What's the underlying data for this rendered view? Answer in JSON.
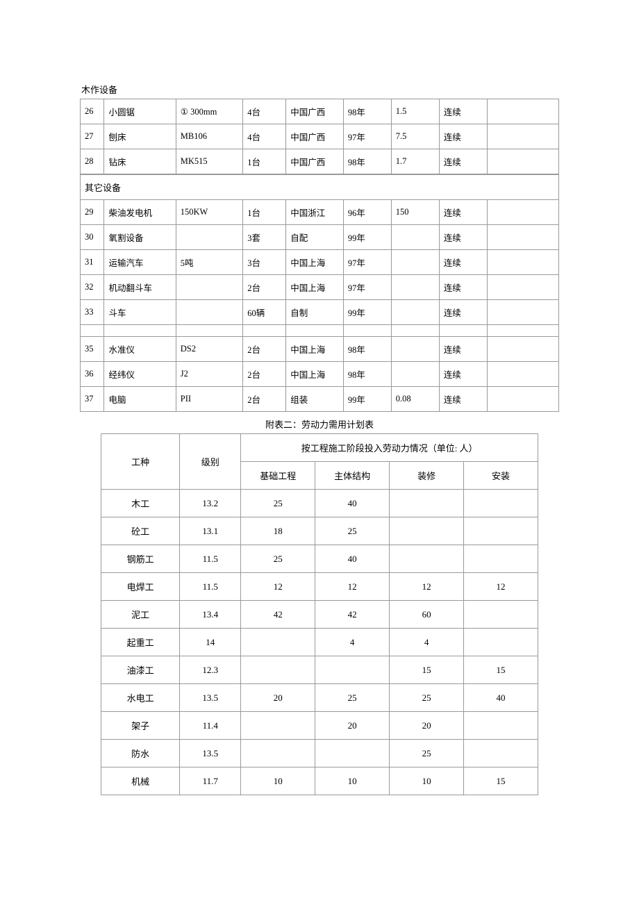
{
  "equipment_table": {
    "sections": [
      {
        "title": "木作设备",
        "rows": [
          {
            "no": "26",
            "name": "小圆锯",
            "model": "①  300mm",
            "qty": "4台",
            "origin": "中国广西",
            "year": "98年",
            "power": "1.5",
            "mode": "连续",
            "note": ""
          },
          {
            "no": "27",
            "name": "刨床",
            "model": "MB106",
            "qty": "4台",
            "origin": "中国广西",
            "year": "97年",
            "power": "7.5",
            "mode": "连续",
            "note": ""
          },
          {
            "no": "28",
            "name": "钻床",
            "model": "MK515",
            "qty": "1台",
            "origin": "中国广西",
            "year": "98年",
            "power": "1.7",
            "mode": "连续",
            "note": ""
          }
        ]
      },
      {
        "title": "其它设备",
        "rows": [
          {
            "no": "29",
            "name": "柴油发电机",
            "model": "150KW",
            "qty": "1台",
            "origin": "中国浙江",
            "year": "96年",
            "power": "150",
            "mode": "连续",
            "note": ""
          },
          {
            "no": "30",
            "name": "氧割设备",
            "model": "",
            "qty": "3套",
            "origin": "自配",
            "year": "99年",
            "power": "",
            "mode": "连续",
            "note": ""
          },
          {
            "no": "31",
            "name": "运输汽车",
            "model": "5吨",
            "qty": "3台",
            "origin": "中国上海",
            "year": "97年",
            "power": "",
            "mode": "连续",
            "note": ""
          },
          {
            "no": "32",
            "name": "机动翻斗车",
            "model": "",
            "qty": "2台",
            "origin": "中国上海",
            "year": "97年",
            "power": "",
            "mode": "连续",
            "note": ""
          },
          {
            "no": "33",
            "name": "斗车",
            "model": "",
            "qty": "60辆",
            "origin": "自制",
            "year": "99年",
            "power": "",
            "mode": "连续",
            "note": ""
          },
          {
            "no": "",
            "name": "",
            "model": "",
            "qty": "",
            "origin": "",
            "year": "",
            "power": "",
            "mode": "",
            "note": ""
          },
          {
            "no": "35",
            "name": "水准仪",
            "model": "DS2",
            "qty": "2台",
            "origin": "中国上海",
            "year": "98年",
            "power": "",
            "mode": "连续",
            "note": ""
          },
          {
            "no": "36",
            "name": "经纬仪",
            "model": "J2",
            "qty": "2台",
            "origin": "中国上海",
            "year": "98年",
            "power": "",
            "mode": "连续",
            "note": ""
          },
          {
            "no": "37",
            "name": "电脑",
            "model": "PII",
            "qty": "2台",
            "origin": "组装",
            "year": "99年",
            "power": "0.08",
            "mode": "连续",
            "note": ""
          }
        ]
      }
    ]
  },
  "labor_table": {
    "caption": "附表二：劳动力需用计划表",
    "headers": {
      "trade": "工种",
      "level": "级别",
      "phase_group": "按工程施工阶段投入劳动力情况（单位:  人）",
      "phase1": "基础工程",
      "phase2": "主体结构",
      "phase3": "装修",
      "phase4": "安装"
    },
    "rows": [
      {
        "trade": "木工",
        "level": "13.2",
        "p1": "25",
        "p2": "40",
        "p3": "",
        "p4": ""
      },
      {
        "trade": "砼工",
        "level": "13.1",
        "p1": "18",
        "p2": "25",
        "p3": "",
        "p4": ""
      },
      {
        "trade": "钢筋工",
        "level": "11.5",
        "p1": "25",
        "p2": "40",
        "p3": "",
        "p4": ""
      },
      {
        "trade": "电焊工",
        "level": "11.5",
        "p1": "12",
        "p2": "12",
        "p3": "12",
        "p4": "12"
      },
      {
        "trade": "泥工",
        "level": "13.4",
        "p1": "42",
        "p2": "42",
        "p3": "60",
        "p4": ""
      },
      {
        "trade": "起重工",
        "level": "14",
        "p1": "",
        "p2": "4",
        "p3": "4",
        "p4": ""
      },
      {
        "trade": "油漆工",
        "level": "12.3",
        "p1": "",
        "p2": "",
        "p3": "15",
        "p4": "15"
      },
      {
        "trade": "水电工",
        "level": "13.5",
        "p1": "20",
        "p2": "25",
        "p3": "25",
        "p4": "40"
      },
      {
        "trade": "架子",
        "level": "11.4",
        "p1": "",
        "p2": "20",
        "p3": "20",
        "p4": ""
      },
      {
        "trade": "防水",
        "level": "13.5",
        "p1": "",
        "p2": "",
        "p3": "25",
        "p4": ""
      },
      {
        "trade": "机械",
        "level": "11.7",
        "p1": "10",
        "p2": "10",
        "p3": "10",
        "p4": "15"
      }
    ]
  }
}
